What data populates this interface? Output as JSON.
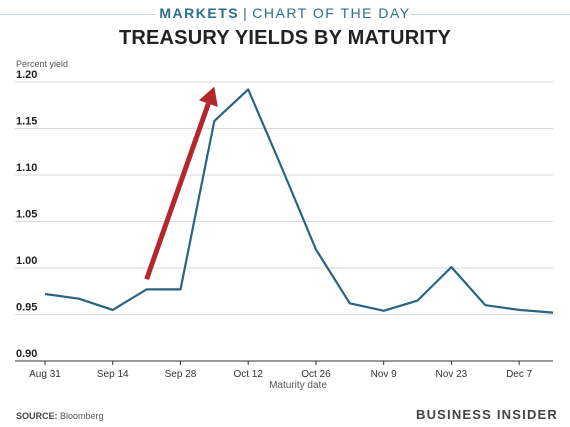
{
  "header": {
    "brand_bold": "MARKETS",
    "brand_sep": "|",
    "brand_light": "CHART OF THE DAY"
  },
  "footer": {
    "source_label": "SOURCE:",
    "source_value": "Bloomberg",
    "logo_text": "BUSINESS INSIDER"
  },
  "colors": {
    "line": "#2a6480",
    "arrow": "#b5272d",
    "grid": "#d9d9d9",
    "brand": "#2a6f8c"
  },
  "chart_data": {
    "type": "line",
    "title": "TREASURY YIELDS BY MATURITY",
    "xlabel": "Maturity date",
    "ylabel": "Percent yield",
    "x": [
      "Aug 31",
      "Sep 7",
      "Sep 14",
      "Sep 21",
      "Sep 28",
      "Oct 5",
      "Oct 12",
      "Oct 19",
      "Oct 26",
      "Nov 2",
      "Nov 9",
      "Nov 16",
      "Nov 23",
      "Nov 30",
      "Dec 7",
      "Dec 14"
    ],
    "x_tick_labels": [
      "Aug 31",
      "Sep 14",
      "Sep 28",
      "Oct 12",
      "Oct 26",
      "Nov 9",
      "Nov 23",
      "Dec 7"
    ],
    "y_ticks": [
      "0.90",
      "0.95",
      "1.00",
      "1.05",
      "1.10",
      "1.15",
      "1.20"
    ],
    "ylim": [
      0.9,
      1.2
    ],
    "grid": true,
    "series": [
      {
        "values": [
          0.972,
          0.967,
          0.955,
          0.977,
          0.977,
          1.158,
          1.192,
          1.107,
          1.02,
          0.962,
          0.954,
          0.965,
          1.001,
          0.96,
          0.955,
          0.952
        ]
      }
    ],
    "annotations": [
      {
        "type": "arrow",
        "from": {
          "x": "Sep 21",
          "y": 0.988
        },
        "to": {
          "x": "Oct 5",
          "y": 1.195
        }
      }
    ]
  }
}
